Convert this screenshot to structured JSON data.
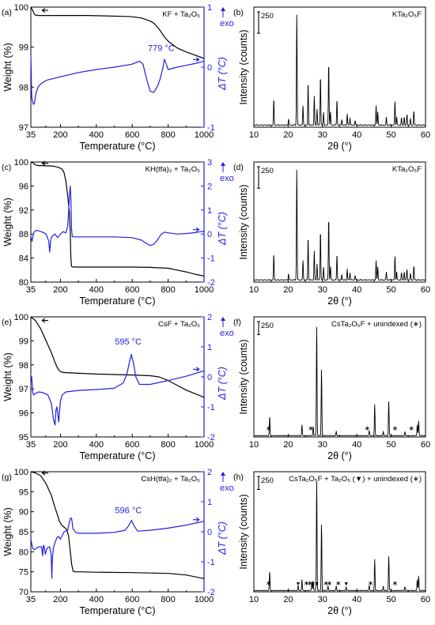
{
  "colors": {
    "weight": "#000000",
    "dta": "#1f1fe6",
    "axis": "#000000"
  },
  "chart_data": [
    {
      "id": "a",
      "panel_label": "(a)",
      "type": "line",
      "sample": "KF + Ta₂O₅",
      "xlabel": "Temperature (°C)",
      "ylabel": "Weight (%)",
      "y2label": "ΔT (°C)",
      "exo_label": "exo",
      "xlim": [
        35,
        1000
      ],
      "ylim": [
        97,
        100
      ],
      "y2lim": [
        -1,
        1
      ],
      "xticks": [
        35,
        200,
        400,
        600,
        800,
        1000
      ],
      "yticks": [
        97,
        98,
        99,
        100
      ],
      "y2ticks": [
        -1,
        0,
        1
      ],
      "annotation": {
        "text": "779 °C",
        "x": 779,
        "y2": 0.14
      },
      "series": [
        {
          "axis": "left",
          "role": "weight",
          "x": [
            35,
            45,
            55,
            60,
            80,
            150,
            250,
            350,
            450,
            550,
            600,
            650,
            700,
            720,
            750,
            780,
            800,
            850,
            900,
            950,
            1000
          ],
          "y": [
            100,
            99.92,
            99.82,
            99.8,
            99.79,
            99.79,
            99.79,
            99.79,
            99.78,
            99.77,
            99.76,
            99.73,
            99.65,
            99.6,
            99.45,
            99.25,
            99.15,
            98.98,
            98.88,
            98.8,
            98.72
          ]
        },
        {
          "axis": "right",
          "role": "dta",
          "x": [
            35,
            40,
            45,
            50,
            55,
            60,
            65,
            75,
            90,
            120,
            200,
            300,
            400,
            500,
            600,
            640,
            660,
            680,
            700,
            720,
            740,
            755,
            770,
            779,
            790,
            800,
            850,
            900,
            950,
            1000
          ],
          "y": [
            0.2,
            -0.5,
            -0.58,
            -0.62,
            -0.6,
            -0.5,
            -0.42,
            -0.33,
            -0.28,
            -0.22,
            -0.16,
            -0.09,
            -0.04,
            0.0,
            0.05,
            0.1,
            0.05,
            -0.2,
            -0.4,
            -0.42,
            -0.32,
            -0.2,
            -0.02,
            0.13,
            0.05,
            -0.04,
            0.0,
            0.03,
            0.06,
            0.1
          ]
        }
      ]
    },
    {
      "id": "b",
      "panel_label": "(b)",
      "type": "xrd",
      "title": "KTa₂O₅F",
      "xlabel": "2θ (°)",
      "ylabel": "Intensity (counts)",
      "scale_label": "250",
      "xlim": [
        10,
        60
      ],
      "xticks": [
        10,
        20,
        30,
        40,
        50,
        60
      ],
      "baseline": 25,
      "ymax": 1400,
      "peaks": {
        "x": [
          15.8,
          20.1,
          22.5,
          24.3,
          25.8,
          27.6,
          28.4,
          29.4,
          30.3,
          31.8,
          32.3,
          34.2,
          35.6,
          37.2,
          38.0,
          39.5,
          45.6,
          46.1,
          48.6,
          51.1,
          51.6,
          53.0,
          53.8,
          54.6,
          55.6,
          56.6
        ],
        "y": [
          330,
          100,
          1340,
          250,
          530,
          360,
          210,
          610,
          170,
          760,
          180,
          330,
          90,
          150,
          110,
          80,
          250,
          180,
          120,
          300,
          120,
          110,
          120,
          150,
          100,
          190
        ]
      }
    },
    {
      "id": "c",
      "panel_label": "(c)",
      "type": "line",
      "sample": "KH(tfa)₂ + Ta₂O₅",
      "xlabel": "Temperature (°C)",
      "ylabel": "Weight (%)",
      "y2label": "ΔT (°C)",
      "exo_label": "exo",
      "xlim": [
        35,
        1000
      ],
      "ylim": [
        80,
        100
      ],
      "y2lim": [
        -2,
        3
      ],
      "xticks": [
        35,
        200,
        400,
        600,
        800,
        1000
      ],
      "yticks": [
        80,
        84,
        88,
        92,
        96,
        100
      ],
      "y2ticks": [
        -2,
        -1,
        0,
        1,
        2,
        3
      ],
      "annotation": null,
      "series": [
        {
          "axis": "left",
          "role": "weight",
          "x": [
            35,
            50,
            60,
            80,
            100,
            130,
            160,
            190,
            210,
            220,
            230,
            240,
            250,
            255,
            258,
            262,
            270,
            400,
            600,
            700,
            800,
            850,
            900,
            950,
            1000
          ],
          "y": [
            100,
            99.8,
            99.5,
            99.4,
            99.4,
            99.35,
            99.3,
            99.1,
            98.8,
            98.2,
            96.8,
            94.5,
            91.5,
            88,
            84,
            82.6,
            82.5,
            82.5,
            82.5,
            82.45,
            82.3,
            82.0,
            81.7,
            81.3,
            81.0
          ]
        },
        {
          "axis": "right",
          "role": "dta",
          "x": [
            35,
            42,
            48,
            55,
            65,
            80,
            100,
            120,
            135,
            140,
            145,
            150,
            160,
            170,
            185,
            200,
            215,
            230,
            240,
            245,
            250,
            255,
            258,
            262,
            266,
            270,
            300,
            400,
            500,
            600,
            650,
            680,
            700,
            720,
            740,
            760,
            780,
            800,
            850,
            900,
            950,
            1000
          ],
          "y": [
            -0.1,
            -0.3,
            -0.02,
            0.1,
            0.15,
            0.13,
            0.08,
            0.0,
            -0.3,
            -0.75,
            -0.3,
            -0.12,
            -0.05,
            0.0,
            -0.15,
            0.0,
            0.1,
            0.05,
            0.3,
            0.9,
            1.6,
            2.0,
            1.5,
            0.2,
            -0.1,
            -0.12,
            -0.12,
            -0.12,
            -0.12,
            -0.15,
            -0.25,
            -0.4,
            -0.48,
            -0.42,
            -0.25,
            -0.02,
            0.08,
            0.05,
            0.0,
            0.02,
            0.06,
            0.12
          ]
        }
      ]
    },
    {
      "id": "d",
      "panel_label": "(d)",
      "type": "xrd",
      "title": "KTa₂O₅F",
      "xlabel": "2θ (°)",
      "ylabel": "Intensity (counts)",
      "scale_label": "250",
      "xlim": [
        10,
        60
      ],
      "xticks": [
        10,
        20,
        30,
        40,
        50,
        60
      ],
      "baseline": 25,
      "ymax": 1400,
      "peaks": {
        "x": [
          15.8,
          20.1,
          22.5,
          24.3,
          25.8,
          27.6,
          28.4,
          29.4,
          30.3,
          31.8,
          32.3,
          34.2,
          35.6,
          37.2,
          38.0,
          39.5,
          45.6,
          46.1,
          48.6,
          51.1,
          51.6,
          53.0,
          53.8,
          54.6,
          55.6,
          56.6
        ],
        "y": [
          330,
          100,
          1340,
          250,
          530,
          360,
          210,
          610,
          170,
          760,
          180,
          330,
          90,
          150,
          110,
          80,
          250,
          180,
          120,
          300,
          120,
          110,
          120,
          150,
          100,
          190
        ]
      }
    },
    {
      "id": "e",
      "panel_label": "(e)",
      "type": "line",
      "sample": "CsF + Ta₂O₅",
      "xlabel": "Temperature (°C)",
      "ylabel": "Weight (%)",
      "y2label": "ΔT (°C)",
      "exo_label": "exo",
      "xlim": [
        35,
        1000
      ],
      "ylim": [
        95,
        100
      ],
      "y2lim": [
        -2,
        2
      ],
      "xticks": [
        35,
        200,
        400,
        600,
        800,
        1000
      ],
      "yticks": [
        95,
        96,
        97,
        98,
        99,
        100
      ],
      "y2ticks": [
        -2,
        -1,
        0,
        1,
        2
      ],
      "annotation": {
        "text": "595 °C",
        "x": 595,
        "y2": 0.82
      },
      "series": [
        {
          "axis": "left",
          "role": "weight",
          "x": [
            35,
            60,
            90,
            120,
            150,
            170,
            185,
            195,
            205,
            220,
            300,
            400,
            500,
            600,
            700,
            750,
            800,
            850,
            900,
            950,
            1000
          ],
          "y": [
            100,
            99.85,
            99.5,
            99.0,
            98.5,
            98.1,
            97.85,
            97.75,
            97.7,
            97.68,
            97.65,
            97.62,
            97.6,
            97.58,
            97.55,
            97.5,
            97.35,
            97.15,
            96.95,
            96.8,
            96.65
          ]
        },
        {
          "axis": "right",
          "role": "dta",
          "x": [
            35,
            40,
            45,
            50,
            60,
            80,
            100,
            130,
            150,
            160,
            170,
            175,
            180,
            185,
            190,
            200,
            210,
            230,
            300,
            400,
            500,
            550,
            570,
            585,
            595,
            605,
            620,
            640,
            700,
            800,
            900,
            1000
          ],
          "y": [
            -0.2,
            0.0,
            -0.5,
            -0.6,
            -0.55,
            -0.5,
            -0.52,
            -0.6,
            -0.9,
            -1.4,
            -1.6,
            -1.1,
            -1.0,
            -1.2,
            -1.5,
            -0.8,
            -0.6,
            -0.5,
            -0.45,
            -0.42,
            -0.38,
            -0.2,
            0.1,
            0.5,
            0.75,
            0.5,
            0.0,
            -0.25,
            -0.25,
            -0.12,
            0.02,
            0.2
          ]
        }
      ]
    },
    {
      "id": "f",
      "panel_label": "(f)",
      "type": "xrd",
      "title": "CsTa₂O₅F + unindexed (∗)",
      "xlabel": "2θ (°)",
      "ylabel": "Intensity (counts)",
      "scale_label": "250",
      "xlim": [
        10,
        60
      ],
      "xticks": [
        10,
        20,
        30,
        40,
        50,
        60
      ],
      "baseline": 25,
      "ymax": 2300,
      "peaks": {
        "x": [
          14.6,
          24.0,
          27.3,
          28.3,
          29.7,
          34.0,
          43.6,
          45.2,
          47.7,
          49.3,
          54.0,
          57.6,
          58.0
        ],
        "y": [
          400,
          230,
          200,
          2150,
          1310,
          110,
          120,
          620,
          110,
          690,
          100,
          230,
          300
        ]
      },
      "markers": [
        {
          "x": 14.3,
          "symbol": "∗"
        },
        {
          "x": 26.6,
          "symbol": "∗"
        },
        {
          "x": 43.0,
          "symbol": "∗"
        },
        {
          "x": 51.1,
          "symbol": "∗"
        },
        {
          "x": 55.9,
          "symbol": "∗"
        }
      ]
    },
    {
      "id": "g",
      "panel_label": "(g)",
      "type": "line",
      "sample": "CsH(tfa)₂ + Ta₂O₅",
      "xlabel": "Temperature (°C)",
      "ylabel": "Weight (%)",
      "y2label": "ΔT (°C)",
      "exo_label": "exo",
      "xlim": [
        35,
        1000
      ],
      "ylim": [
        70,
        100
      ],
      "y2lim": [
        -2,
        2
      ],
      "xticks": [
        35,
        200,
        400,
        600,
        800,
        1000
      ],
      "yticks": [
        70,
        75,
        80,
        85,
        90,
        95,
        100
      ],
      "y2ticks": [
        -2,
        -1,
        0,
        1,
        2
      ],
      "annotation": {
        "text": "596 °C",
        "x": 596,
        "y2": 0.35
      },
      "series": [
        {
          "axis": "left",
          "role": "weight",
          "x": [
            35,
            60,
            90,
            120,
            150,
            170,
            185,
            195,
            210,
            225,
            235,
            245,
            255,
            262,
            270,
            280,
            300,
            400,
            600,
            800,
            900,
            1000
          ],
          "y": [
            100,
            99.7,
            99.0,
            97.0,
            94.0,
            91.0,
            89.0,
            87.5,
            86.5,
            86.0,
            85.5,
            84.0,
            80.0,
            77.0,
            75.2,
            75.0,
            75.0,
            74.9,
            74.8,
            74.6,
            74.2,
            73.3
          ]
        },
        {
          "axis": "right",
          "role": "dta",
          "x": [
            35,
            45,
            55,
            65,
            80,
            95,
            100,
            105,
            110,
            115,
            125,
            140,
            148,
            152,
            155,
            160,
            170,
            180,
            190,
            200,
            220,
            240,
            255,
            262,
            270,
            285,
            300,
            400,
            500,
            560,
            580,
            596,
            610,
            630,
            700,
            800,
            900,
            1000
          ],
          "y": [
            -0.25,
            -0.55,
            -0.6,
            -0.55,
            -0.5,
            -0.5,
            -0.8,
            -0.45,
            -0.5,
            -0.75,
            -0.55,
            -0.5,
            -0.75,
            -1.55,
            -0.9,
            -0.55,
            -0.35,
            -0.2,
            -0.15,
            -0.25,
            0.0,
            0.05,
            0.45,
            0.45,
            0.1,
            -0.02,
            -0.05,
            -0.05,
            -0.02,
            0.05,
            0.2,
            0.38,
            0.2,
            0.02,
            0.05,
            0.12,
            0.22,
            0.35
          ]
        }
      ]
    },
    {
      "id": "h",
      "panel_label": "(h)",
      "type": "xrd",
      "title": "CsTa₂O₅F + Ta₂O₅ (▼) + unindexed (∗)",
      "xlabel": "2θ (°)",
      "ylabel": "Intensity (counts)",
      "scale_label": "250",
      "xlim": [
        10,
        60
      ],
      "xticks": [
        10,
        20,
        30,
        40,
        50,
        60
      ],
      "baseline": 25,
      "ymax": 2300,
      "peaks": {
        "x": [
          14.6,
          22.9,
          24.0,
          26.9,
          27.3,
          28.3,
          29.7,
          31.6,
          34.0,
          36.9,
          43.6,
          45.2,
          47.7,
          49.3,
          54.0,
          57.6,
          58.0
        ],
        "y": [
          400,
          120,
          230,
          170,
          200,
          2150,
          1310,
          110,
          110,
          100,
          120,
          620,
          110,
          690,
          100,
          230,
          300
        ]
      },
      "markers": [
        {
          "x": 14.3,
          "symbol": "∗"
        },
        {
          "x": 22.9,
          "symbol": "▼"
        },
        {
          "x": 25.3,
          "symbol": "∗"
        },
        {
          "x": 26.3,
          "symbol": "∗"
        },
        {
          "x": 27.1,
          "symbol": "∗"
        },
        {
          "x": 28.3,
          "symbol": "▼"
        },
        {
          "x": 31.0,
          "symbol": "∗"
        },
        {
          "x": 32.0,
          "symbol": "∗"
        },
        {
          "x": 34.6,
          "symbol": "∗"
        },
        {
          "x": 36.9,
          "symbol": "▼"
        },
        {
          "x": 44.0,
          "symbol": "∗"
        },
        {
          "x": 51.1,
          "symbol": "∗"
        }
      ]
    }
  ]
}
